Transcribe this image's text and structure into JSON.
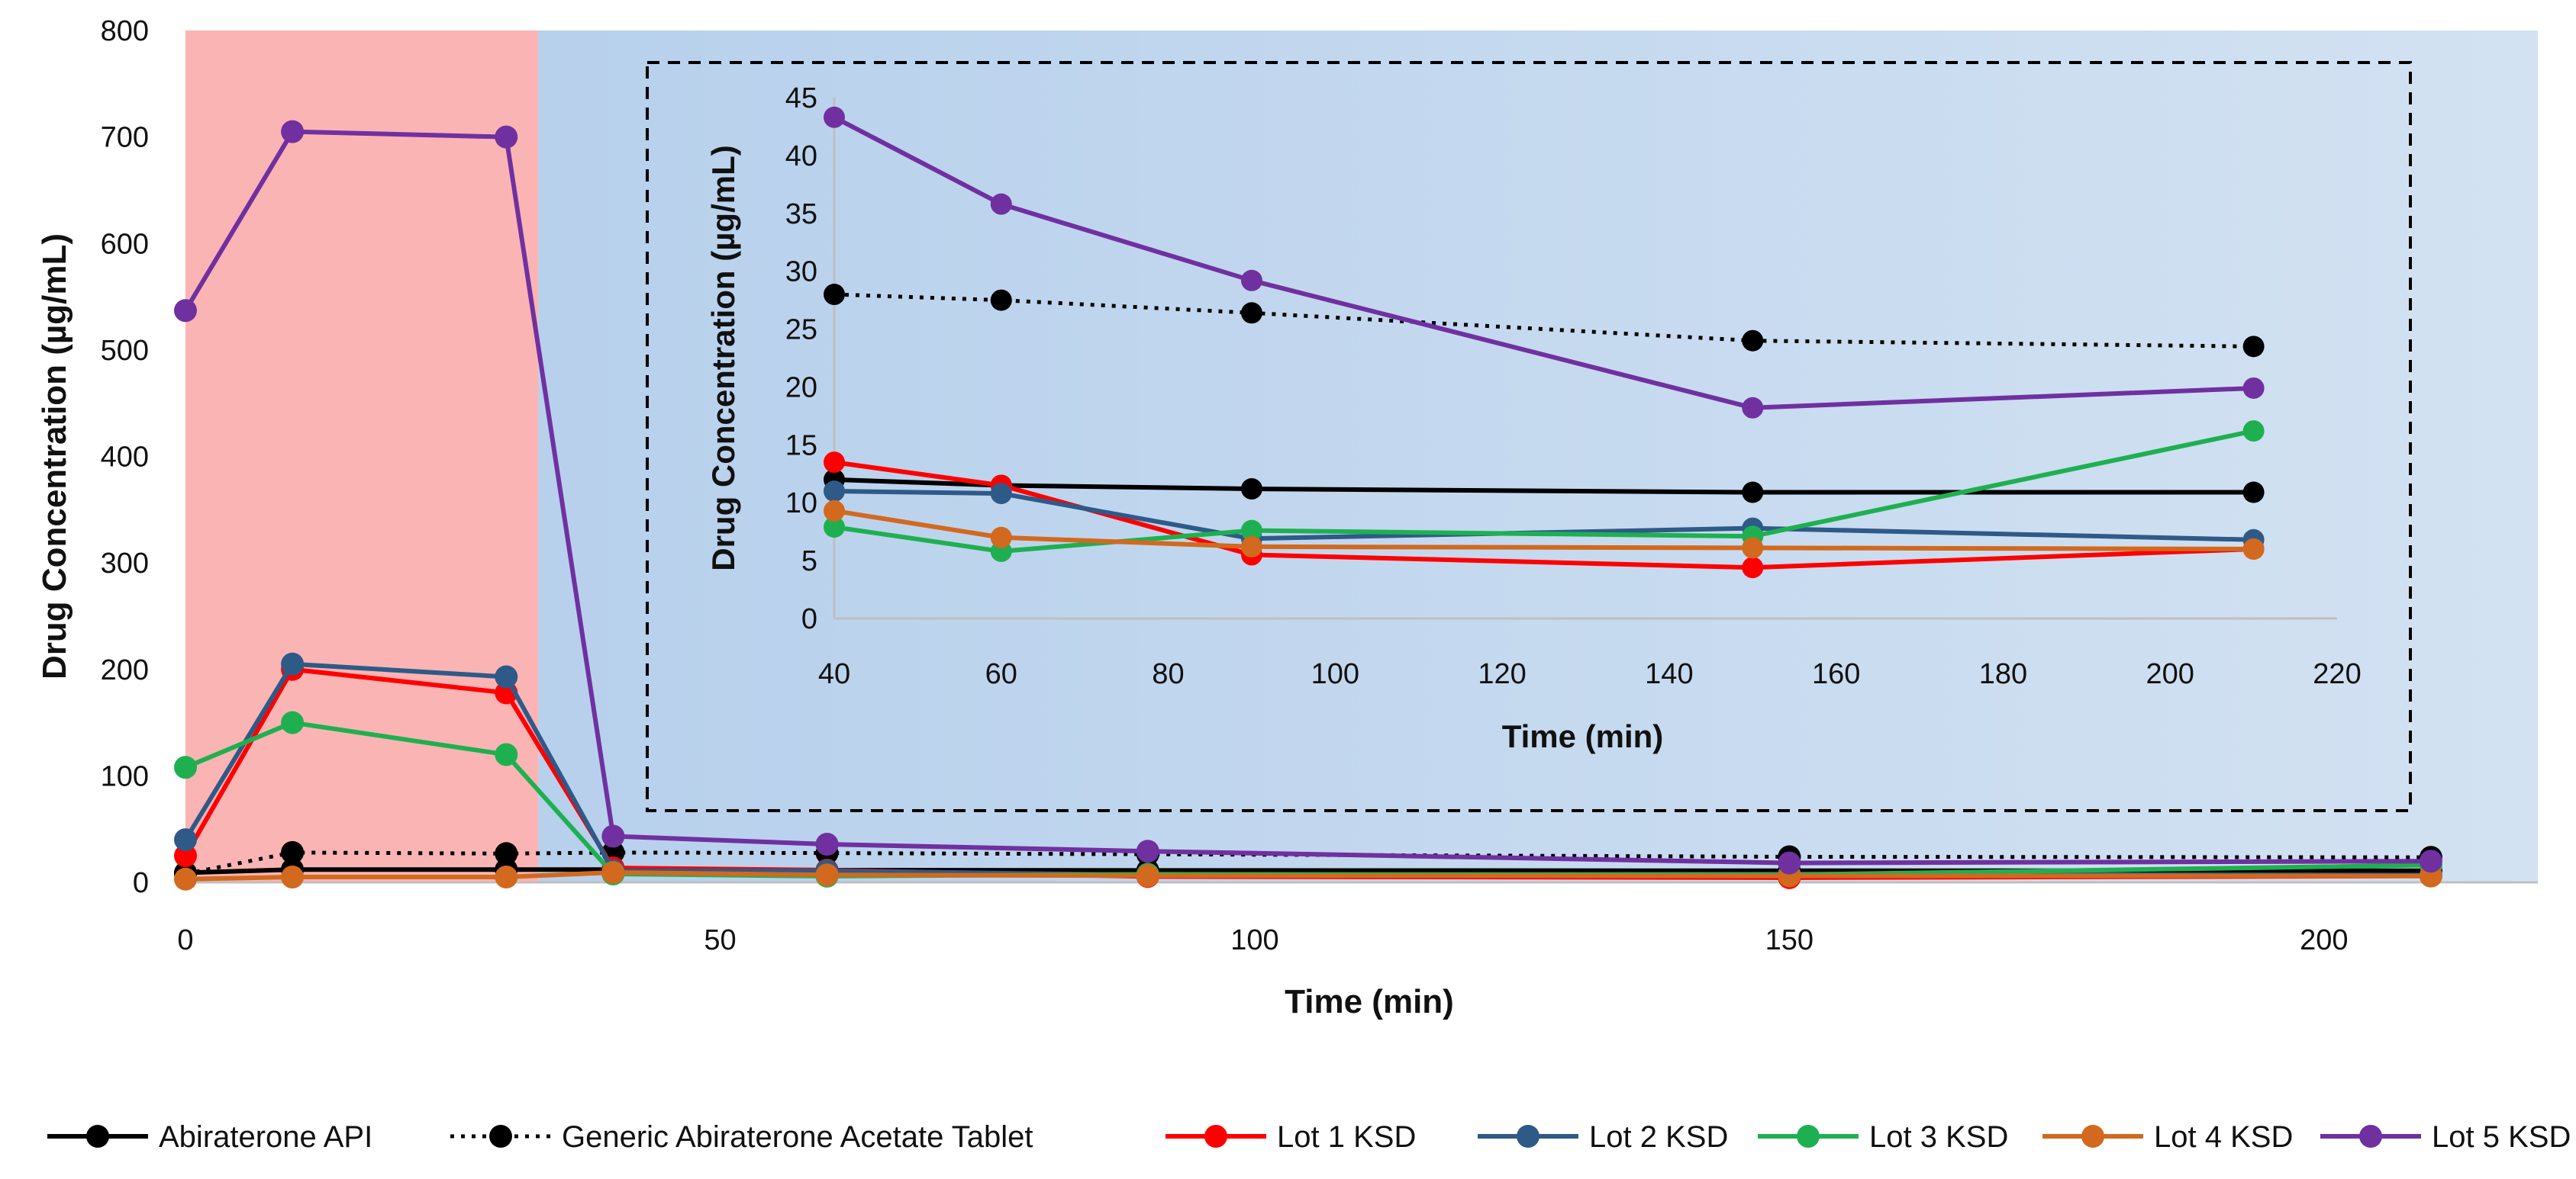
{
  "chart_data": {
    "type": "line",
    "main": {
      "xlabel": "Time (min)",
      "ylabel": "Drug Concentration (µg/mL)",
      "xlim": [
        0,
        220
      ],
      "ylim": [
        0,
        800
      ],
      "xticks": [
        0,
        50,
        100,
        150,
        200
      ],
      "yticks": [
        0,
        100,
        200,
        300,
        400,
        500,
        600,
        700,
        800
      ],
      "regions": [
        {
          "name": "acidic-phase",
          "x_start": 0,
          "x_end": 33,
          "color": "#FBB4B4"
        },
        {
          "name": "neutral-phase",
          "x_start": 33,
          "x_end": 220,
          "color": "#C3D8EE"
        }
      ]
    },
    "inset": {
      "xlabel": "Time (min)",
      "ylabel": "Drug Concentration (µg/mL)",
      "xlim": [
        40,
        220
      ],
      "ylim": [
        0,
        45
      ],
      "xticks": [
        40,
        60,
        80,
        100,
        120,
        140,
        160,
        180,
        200,
        220
      ],
      "yticks": [
        0,
        5,
        10,
        15,
        20,
        25,
        30,
        35,
        40,
        45
      ]
    },
    "series": [
      {
        "name": "Abiraterone API",
        "color": "#000000",
        "dashed": false,
        "x": [
          0,
          10,
          30,
          40,
          60,
          90,
          150,
          210
        ],
        "y": [
          9,
          12,
          12,
          12,
          11.5,
          11.2,
          10.9,
          10.9
        ]
      },
      {
        "name": "Generic Abiraterone Acetate Tablet",
        "color": "#000000",
        "dashed": true,
        "x": [
          0,
          10,
          30,
          40,
          60,
          90,
          150,
          210
        ],
        "y": [
          8,
          28,
          27,
          28,
          27.5,
          26.4,
          24,
          23.5
        ]
      },
      {
        "name": "Lot 1 KSD",
        "color": "#FF0000",
        "dashed": false,
        "x": [
          0,
          10,
          30,
          40,
          60,
          90,
          150,
          210
        ],
        "y": [
          25,
          200,
          178,
          13.5,
          11.5,
          5.5,
          4.4,
          6
        ]
      },
      {
        "name": "Lot 2 KSD",
        "color": "#2E5A88",
        "dashed": false,
        "x": [
          0,
          10,
          30,
          40,
          60,
          90,
          150,
          210
        ],
        "y": [
          40,
          205,
          193,
          11,
          10.8,
          6.9,
          7.8,
          6.8
        ]
      },
      {
        "name": "Lot 3 KSD",
        "color": "#1EB050",
        "dashed": false,
        "x": [
          0,
          10,
          30,
          40,
          60,
          90,
          150,
          210
        ],
        "y": [
          108,
          150,
          120,
          7.9,
          5.8,
          7.6,
          7.1,
          16.2
        ]
      },
      {
        "name": "Lot 4 KSD",
        "color": "#D2691E",
        "dashed": false,
        "x": [
          0,
          10,
          30,
          40,
          60,
          90,
          150,
          210
        ],
        "y": [
          3,
          5,
          5,
          9.3,
          7,
          6.2,
          6.1,
          6
        ]
      },
      {
        "name": "Lot 5 KSD",
        "color": "#7030A0",
        "dashed": false,
        "x": [
          0,
          10,
          30,
          40,
          60,
          90,
          150,
          210
        ],
        "y": [
          537,
          705,
          700,
          43.3,
          35.8,
          29.2,
          18.2,
          19.9
        ]
      }
    ],
    "legend_position": "bottom"
  }
}
